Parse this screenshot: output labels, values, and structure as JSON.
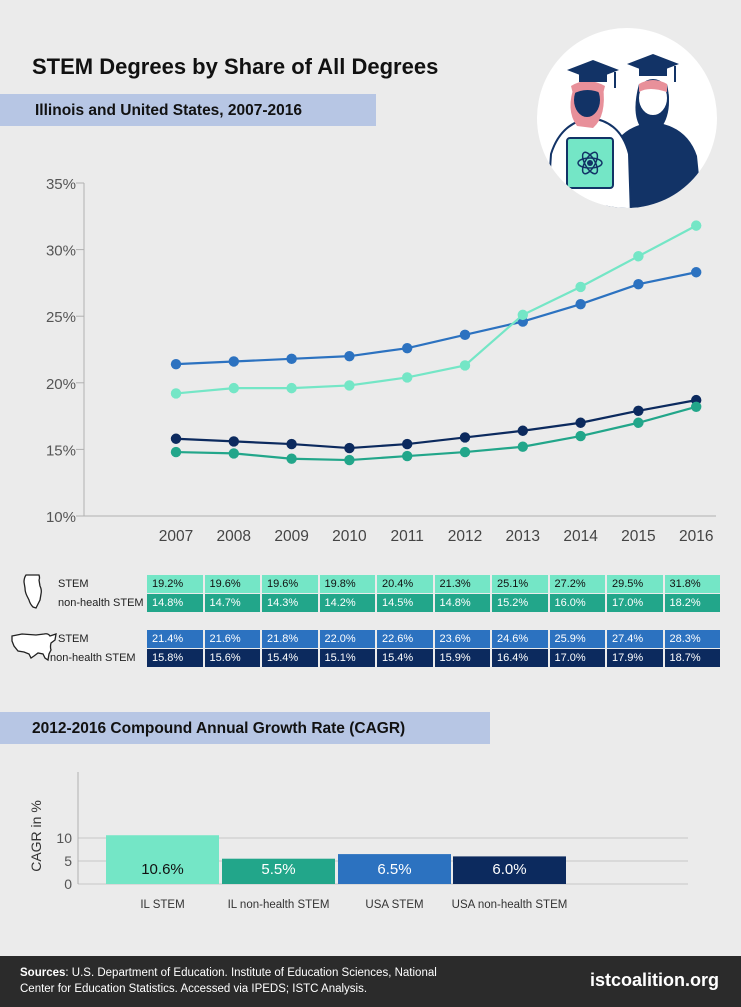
{
  "header": {
    "title": "STEM Degrees by Share of All Degrees",
    "subtitle": "Illinois and United States, 2007-2016"
  },
  "colors": {
    "il_stem": "#74e6c6",
    "il_nonhealth": "#22a68a",
    "us_stem": "#2c72c0",
    "us_nonhealth": "#0c2a5e"
  },
  "chart_data": [
    {
      "type": "line",
      "x": [
        "2007",
        "2008",
        "2009",
        "2010",
        "2011",
        "2012",
        "2013",
        "2014",
        "2015",
        "2016"
      ],
      "ylim": [
        10,
        35
      ],
      "yticks": [
        "10%",
        "15%",
        "20%",
        "25%",
        "30%",
        "35%"
      ],
      "grid": false,
      "series": [
        {
          "group": "Illinois",
          "name": "STEM",
          "color": "#74e6c6",
          "values": [
            19.2,
            19.6,
            19.6,
            19.8,
            20.4,
            21.3,
            25.1,
            27.2,
            29.5,
            31.8
          ],
          "labels": [
            "19.2%",
            "19.6%",
            "19.6%",
            "19.8%",
            "20.4%",
            "21.3%",
            "25.1%",
            "27.2%",
            "29.5%",
            "31.8%"
          ]
        },
        {
          "group": "Illinois",
          "name": "non-health STEM",
          "color": "#22a68a",
          "values": [
            14.8,
            14.7,
            14.3,
            14.2,
            14.5,
            14.8,
            15.2,
            16.0,
            17.0,
            18.2
          ],
          "labels": [
            "14.8%",
            "14.7%",
            "14.3%",
            "14.2%",
            "14.5%",
            "14.8%",
            "15.2%",
            "16.0%",
            "17.0%",
            "18.2%"
          ]
        },
        {
          "group": "United States",
          "name": "STEM",
          "color": "#2c72c0",
          "values": [
            21.4,
            21.6,
            21.8,
            22.0,
            22.6,
            23.6,
            24.6,
            25.9,
            27.4,
            28.3
          ],
          "labels": [
            "21.4%",
            "21.6%",
            "21.8%",
            "22.0%",
            "22.6%",
            "23.6%",
            "24.6%",
            "25.9%",
            "27.4%",
            "28.3%"
          ]
        },
        {
          "group": "United States",
          "name": "non-health STEM",
          "color": "#0c2a5e",
          "values": [
            15.8,
            15.6,
            15.4,
            15.1,
            15.4,
            15.9,
            16.4,
            17.0,
            17.9,
            18.7
          ],
          "labels": [
            "15.8%",
            "15.6%",
            "15.4%",
            "15.1%",
            "15.4%",
            "15.9%",
            "16.4%",
            "17.0%",
            "17.9%",
            "18.7%"
          ]
        }
      ]
    },
    {
      "type": "bar",
      "title": "2012-2016 Compound Annual Growth Rate (CAGR)",
      "ylabel": "CAGR in %",
      "ylim": [
        0,
        11
      ],
      "yticks": [
        "0",
        "5",
        "10"
      ],
      "grid": true,
      "categories": [
        "IL STEM",
        "IL non-health STEM",
        "USA STEM",
        "USA non-health STEM"
      ],
      "values": [
        10.6,
        5.5,
        6.5,
        6.0
      ],
      "value_labels": [
        "10.6%",
        "5.5%",
        "6.5%",
        "6.0%"
      ],
      "colors": [
        "#74e6c6",
        "#22a68a",
        "#2c72c0",
        "#0c2a5e"
      ]
    }
  ],
  "footer": {
    "sources_label": "Sources",
    "sources_text": ": U.S. Department of Education. Institute of Education Sciences, National Center for Education Statistics. Accessed via IPEDS; ISTC Analysis.",
    "brand": "istcoalition.org"
  }
}
